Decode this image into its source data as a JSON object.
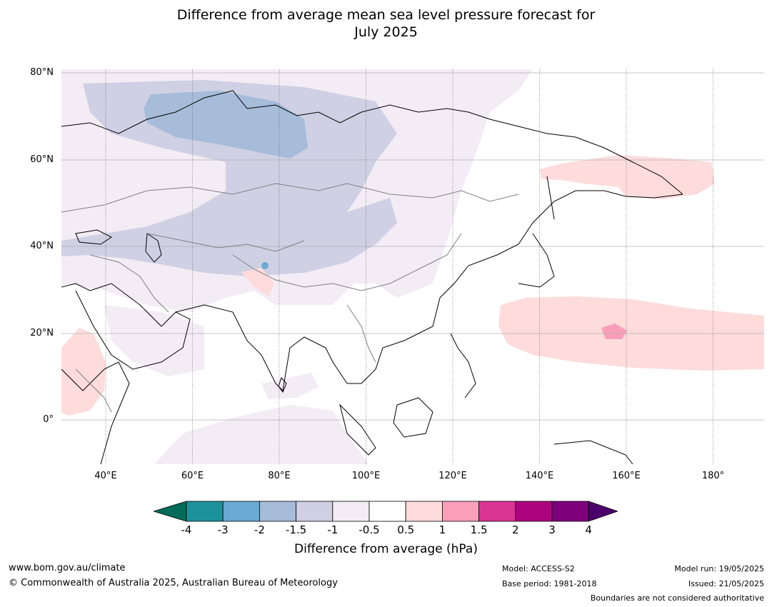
{
  "title_line1": "Difference from average mean sea level pressure forecast for",
  "title_line2": "July 2025",
  "map": {
    "lat_ticks": [
      "80°N",
      "60°N",
      "40°N",
      "20°N",
      "0°"
    ],
    "lon_ticks": [
      "40°E",
      "60°E",
      "80°E",
      "100°E",
      "120°E",
      "140°E",
      "160°E",
      "180°"
    ],
    "colors": {
      "neg4": "#016c59",
      "neg3": "#1b929b",
      "neg2": "#6aa9d2",
      "neg15": "#a6bcd9",
      "neg1": "#cfd0e4",
      "neg05": "#f3ecf5",
      "zero": "#ffffff",
      "pos05": "#fddcdb",
      "pos1": "#f99fba",
      "pos15": "#dc3495",
      "pos2": "#ad037e",
      "pos3": "#7e017b",
      "pos4": "#4c0069"
    }
  },
  "colorbar": {
    "ticks": [
      "-4",
      "-3",
      "-2",
      "-1.5",
      "-1",
      "-0.5",
      "0.5",
      "1",
      "1.5",
      "2",
      "3",
      "4"
    ],
    "label": "Difference from average (hPa)"
  },
  "footer": {
    "url": "www.bom.gov.au/climate",
    "copyright": "© Commonwealth of Australia 2025, Australian Bureau of Meteorology",
    "model": "Model: ACCESS-S2",
    "base_period": "Base period: 1981-2018",
    "model_run": "Model run: 19/05/2025",
    "issued": "Issued: 21/05/2025",
    "disclaimer": "Boundaries are not considered authoritative"
  }
}
